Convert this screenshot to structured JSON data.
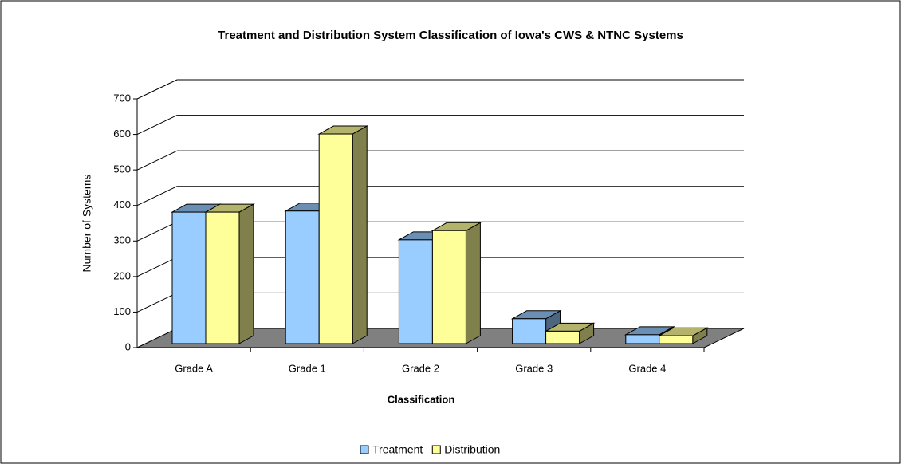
{
  "chart_data": {
    "type": "bar3d",
    "title": "Treatment and Distribution System Classification of Iowa's CWS & NTNC Systems",
    "x_label": "Classification",
    "y_label": "Number of Systems",
    "categories": [
      "Grade A",
      "Grade 1",
      "Grade 2",
      "Grade 3",
      "Grade 4"
    ],
    "series": [
      {
        "name": "Treatment",
        "color": "#99ccff",
        "values": [
          370,
          373,
          292,
          70,
          25
        ]
      },
      {
        "name": "Distribution",
        "color": "#ffff99",
        "values": [
          370,
          590,
          318,
          35,
          22
        ]
      }
    ],
    "ylim": [
      0,
      700
    ],
    "yticks": [
      0,
      100,
      200,
      300,
      400,
      500,
      600,
      700
    ],
    "grid": true,
    "legend": "bottom"
  }
}
